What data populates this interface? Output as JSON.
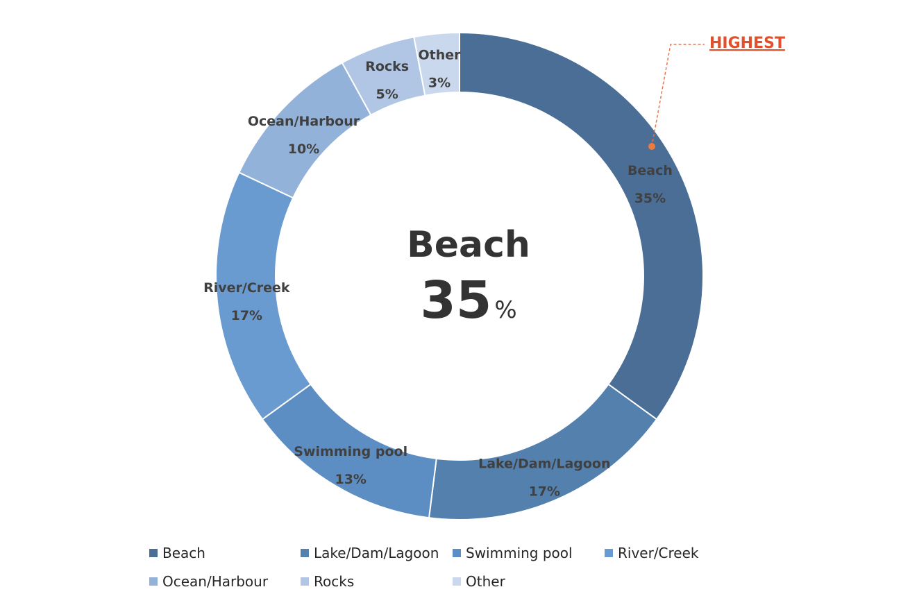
{
  "chart_data": {
    "type": "pie",
    "donut": true,
    "categories": [
      "Beach",
      "Lake/Dam/Lagoon",
      "Swimming pool",
      "River/Creek",
      "Ocean/Harbour",
      "Rocks",
      "Other"
    ],
    "values": [
      35,
      17,
      13,
      17,
      10,
      5,
      3
    ],
    "value_labels": [
      "35%",
      "17%",
      "13%",
      "17%",
      "10%",
      "5%",
      "3%"
    ],
    "colors": [
      "#4a6e95",
      "#5480ad",
      "#5d8ec3",
      "#6a9bd0",
      "#93b2d9",
      "#b1c6e4",
      "#c9d8ec"
    ],
    "center": {
      "name": "Beach",
      "value": "35",
      "unit": "%"
    },
    "callout": {
      "text": "HIGHEST",
      "color": "#e0502a",
      "target": "Beach"
    },
    "legend": {
      "position": "bottom",
      "items": [
        "Beach",
        "Lake/Dam/Lagoon",
        "Swimming pool",
        "River/Creek",
        "Ocean/Harbour",
        "Rocks",
        "Other"
      ]
    }
  }
}
